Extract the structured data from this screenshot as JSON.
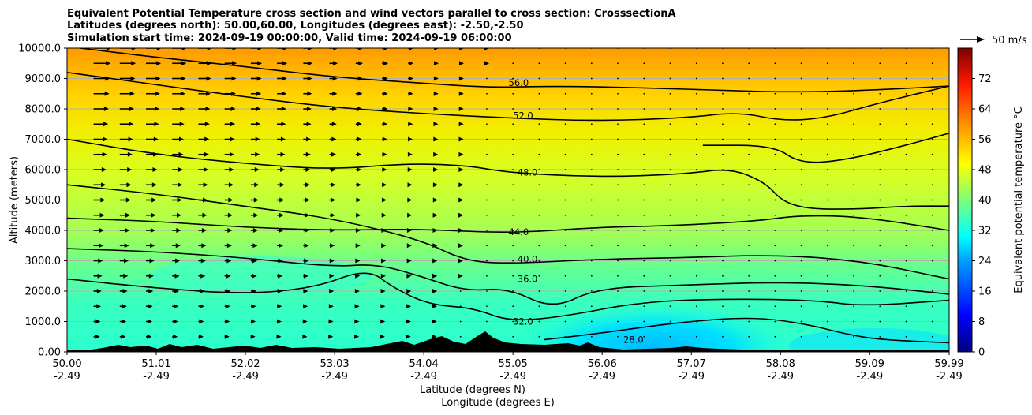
{
  "chart_data": {
    "type": "heatmap",
    "title_lines": [
      "Equivalent Potential Temperature cross section and wind vectors parallel to cross section: CrosssectionA",
      "Latitudes (degrees north): 50.00,60.00, Longitudes (degrees east): -2.50,-2.50",
      "Simulation start time: 2024-09-19 00:00:00, Valid time: 2024-09-19 06:00:00"
    ],
    "xlabel_lines": [
      "Latitude (degrees N)",
      "Longitude (degrees E)"
    ],
    "ylabel": "Altitude (meters)",
    "xlim": [
      50.0,
      59.99
    ],
    "ylim": [
      0,
      10000
    ],
    "x_ticks": [
      {
        "value": 50.0,
        "lat": "50.00",
        "lon": "-2.49"
      },
      {
        "value": 51.01,
        "lat": "51.01",
        "lon": "-2.49"
      },
      {
        "value": 52.02,
        "lat": "52.02",
        "lon": "-2.49"
      },
      {
        "value": 53.03,
        "lat": "53.03",
        "lon": "-2.49"
      },
      {
        "value": 54.04,
        "lat": "54.04",
        "lon": "-2.49"
      },
      {
        "value": 55.05,
        "lat": "55.05",
        "lon": "-2.49"
      },
      {
        "value": 56.06,
        "lat": "56.06",
        "lon": "-2.49"
      },
      {
        "value": 57.07,
        "lat": "57.07",
        "lon": "-2.49"
      },
      {
        "value": 58.08,
        "lat": "58.08",
        "lon": "-2.49"
      },
      {
        "value": 59.09,
        "lat": "59.09",
        "lon": "-2.49"
      },
      {
        "value": 59.99,
        "lat": "59.99",
        "lon": "-2.49"
      }
    ],
    "y_ticks": [
      {
        "value": 0,
        "label": "0.00"
      },
      {
        "value": 1000,
        "label": "1000.0"
      },
      {
        "value": 2000,
        "label": "2000.0"
      },
      {
        "value": 3000,
        "label": "3000.0"
      },
      {
        "value": 4000,
        "label": "4000.0"
      },
      {
        "value": 5000,
        "label": "5000.0"
      },
      {
        "value": 6000,
        "label": "6000.0"
      },
      {
        "value": 7000,
        "label": "7000.0"
      },
      {
        "value": 8000,
        "label": "8000.0"
      },
      {
        "value": 9000,
        "label": "9000.0"
      },
      {
        "value": 10000,
        "label": "10000.0"
      }
    ],
    "grid": "horizontal",
    "colorbar": {
      "label": "Equivalent potential temperature °C",
      "min": 0,
      "max": 80,
      "ticks": [
        0,
        8,
        16,
        24,
        32,
        40,
        48,
        56,
        64,
        72
      ],
      "colormap": "jet"
    },
    "quiver_key": {
      "label": "50 m/s",
      "value": 50
    },
    "contour_levels": [
      {
        "value": 56,
        "label": "56.0",
        "label_x": 55.0,
        "label_y": 8750,
        "points": [
          [
            50.15,
            10000
          ],
          [
            51.0,
            9700
          ],
          [
            52.0,
            9400
          ],
          [
            53.0,
            9050
          ],
          [
            54.0,
            8850
          ],
          [
            54.8,
            8700
          ],
          [
            55.5,
            8750
          ],
          [
            56.5,
            8700
          ],
          [
            57.5,
            8600
          ],
          [
            58.2,
            8550
          ],
          [
            59.0,
            8600
          ],
          [
            59.99,
            8750
          ]
        ]
      },
      {
        "value": 52,
        "label": "52.0",
        "label_x": 55.05,
        "label_y": 7680,
        "points": [
          [
            50.0,
            9200
          ],
          [
            51.0,
            8800
          ],
          [
            52.0,
            8400
          ],
          [
            53.0,
            8050
          ],
          [
            54.0,
            7850
          ],
          [
            55.0,
            7700
          ],
          [
            56.0,
            7600
          ],
          [
            57.0,
            7700
          ],
          [
            57.6,
            7900
          ],
          [
            58.1,
            7600
          ],
          [
            58.6,
            7700
          ],
          [
            59.2,
            8200
          ],
          [
            59.99,
            8750
          ]
        ]
      },
      {
        "value": 48,
        "label": "48.0",
        "label_x": 55.1,
        "label_y": 5800,
        "points": [
          [
            50.0,
            7000
          ],
          [
            51.0,
            6500
          ],
          [
            52.0,
            6200
          ],
          [
            53.0,
            6000
          ],
          [
            53.8,
            6200
          ],
          [
            54.5,
            6150
          ],
          [
            55.0,
            5900
          ],
          [
            56.0,
            5750
          ],
          [
            57.0,
            5850
          ],
          [
            57.5,
            6050
          ],
          [
            57.9,
            5600
          ],
          [
            58.1,
            4950
          ],
          [
            58.4,
            4700
          ],
          [
            59.0,
            4700
          ],
          [
            59.5,
            4800
          ],
          [
            59.99,
            4800
          ]
        ]
      },
      {
        "value": 48,
        "label": "",
        "label_x": 0,
        "label_y": 0,
        "points": [
          [
            57.2,
            6800
          ],
          [
            58.0,
            6800
          ],
          [
            58.3,
            6200
          ],
          [
            58.8,
            6300
          ],
          [
            59.5,
            6800
          ],
          [
            59.99,
            7200
          ]
        ]
      },
      {
        "value": 44,
        "label": "44.0",
        "label_x": 55.0,
        "label_y": 3850,
        "points": [
          [
            50.0,
            4400
          ],
          [
            51.0,
            4300
          ],
          [
            52.0,
            4100
          ],
          [
            53.0,
            4000
          ],
          [
            54.0,
            4050
          ],
          [
            55.0,
            3900
          ],
          [
            56.0,
            4100
          ],
          [
            56.8,
            4150
          ],
          [
            57.8,
            4300
          ],
          [
            58.3,
            4500
          ],
          [
            59.0,
            4450
          ],
          [
            59.99,
            4000
          ]
        ]
      },
      {
        "value": 40,
        "label": "40.0",
        "label_x": 55.1,
        "label_y": 2950,
        "points": [
          [
            50.0,
            5500
          ],
          [
            51.0,
            5200
          ],
          [
            52.0,
            4800
          ],
          [
            53.0,
            4400
          ],
          [
            54.0,
            3700
          ],
          [
            54.5,
            3000
          ],
          [
            55.0,
            2900
          ],
          [
            56.0,
            3050
          ],
          [
            57.0,
            3100
          ],
          [
            58.0,
            3200
          ],
          [
            59.0,
            3000
          ],
          [
            59.99,
            2400
          ]
        ]
      },
      {
        "value": 36,
        "label": "36.0",
        "label_x": 55.1,
        "label_y": 2300,
        "points": [
          [
            50.0,
            3400
          ],
          [
            51.0,
            3300
          ],
          [
            52.0,
            3100
          ],
          [
            53.0,
            2800
          ],
          [
            53.5,
            2900
          ],
          [
            54.0,
            2500
          ],
          [
            54.5,
            2000
          ],
          [
            55.0,
            2100
          ],
          [
            55.5,
            1400
          ],
          [
            56.0,
            2100
          ],
          [
            57.0,
            2200
          ],
          [
            58.0,
            2300
          ],
          [
            59.0,
            2200
          ],
          [
            59.99,
            1900
          ]
        ]
      },
      {
        "value": 32,
        "label": "32.0",
        "label_x": 55.05,
        "label_y": 900,
        "points": [
          [
            50.0,
            2400
          ],
          [
            51.0,
            2100
          ],
          [
            52.0,
            1900
          ],
          [
            52.8,
            2100
          ],
          [
            53.4,
            2750
          ],
          [
            53.7,
            2100
          ],
          [
            54.1,
            1550
          ],
          [
            54.6,
            1450
          ],
          [
            55.0,
            1000
          ],
          [
            55.6,
            1150
          ],
          [
            56.5,
            1650
          ],
          [
            57.5,
            1750
          ],
          [
            58.5,
            1700
          ],
          [
            59.0,
            1500
          ],
          [
            59.99,
            1700
          ]
        ]
      },
      {
        "value": 28,
        "label": "28.0",
        "label_x": 56.3,
        "label_y": 300,
        "points": [
          [
            55.4,
            400
          ],
          [
            56.0,
            600
          ],
          [
            57.0,
            1000
          ],
          [
            57.8,
            1150
          ],
          [
            58.4,
            900
          ],
          [
            58.8,
            600
          ],
          [
            59.2,
            400
          ],
          [
            59.99,
            300
          ]
        ]
      }
    ]
  }
}
